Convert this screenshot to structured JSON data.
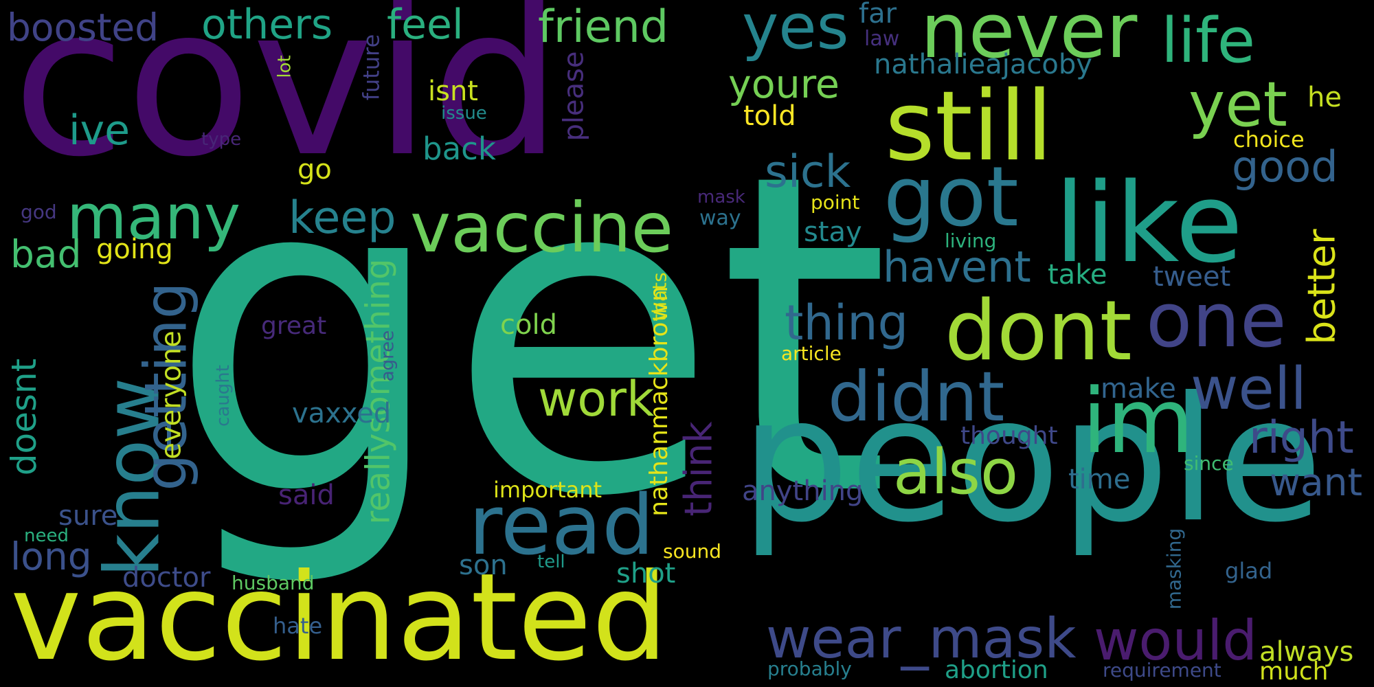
{
  "words": [
    {
      "text": "covid",
      "color": "#440a68"
    },
    {
      "text": "get",
      "color": "#22a884"
    },
    {
      "text": "people",
      "color": "#21918c"
    },
    {
      "text": "vaccinated",
      "color": "#d2e21b"
    },
    {
      "text": "still",
      "color": "#b5de2b"
    },
    {
      "text": "like",
      "color": "#1f9e89"
    },
    {
      "text": "never",
      "color": "#6ccd5a"
    },
    {
      "text": "got",
      "color": "#2a788e"
    },
    {
      "text": "dont",
      "color": "#a2da37"
    },
    {
      "text": "vaccine",
      "color": "#6ccd5a"
    },
    {
      "text": "im",
      "color": "#2fb47c"
    },
    {
      "text": "know",
      "color": "#277f8e"
    },
    {
      "text": "read",
      "color": "#2c728e"
    },
    {
      "text": "one",
      "color": "#414487"
    },
    {
      "text": "didnt",
      "color": "#31688e"
    },
    {
      "text": "many",
      "color": "#35b779"
    },
    {
      "text": "yes",
      "color": "#25848e"
    },
    {
      "text": "also",
      "color": "#8ed645"
    },
    {
      "text": "life",
      "color": "#2fb47c"
    },
    {
      "text": "yet",
      "color": "#7ad151"
    },
    {
      "text": "getting",
      "color": "#33638d"
    },
    {
      "text": "well",
      "color": "#3b528b"
    },
    {
      "text": "wear_mask",
      "color": "#3e4a89"
    },
    {
      "text": "would",
      "color": "#4a1c6e"
    },
    {
      "text": "work",
      "color": "#a0da39"
    },
    {
      "text": "thing",
      "color": "#31688e"
    },
    {
      "text": "right",
      "color": "#3e4a89"
    },
    {
      "text": "keep",
      "color": "#26828e"
    },
    {
      "text": "friend",
      "color": "#5ec962"
    },
    {
      "text": "others",
      "color": "#20a486"
    },
    {
      "text": "feel",
      "color": "#2ab07f"
    },
    {
      "text": "sick",
      "color": "#2c728e"
    },
    {
      "text": "havent",
      "color": "#2d708e"
    },
    {
      "text": "good",
      "color": "#33638d"
    },
    {
      "text": "better",
      "color": "#dae319"
    },
    {
      "text": "youre",
      "color": "#75d054"
    },
    {
      "text": "boosted",
      "color": "#404387"
    },
    {
      "text": "ive",
      "color": "#1e9b8a"
    },
    {
      "text": "think",
      "color": "#482575"
    },
    {
      "text": "want",
      "color": "#38598c"
    },
    {
      "text": "long",
      "color": "#3b518b"
    },
    {
      "text": "bad",
      "color": "#44bf70"
    },
    {
      "text": "reallysomething",
      "color": "#52c569"
    },
    {
      "text": "doesnt",
      "color": "#1fa088"
    },
    {
      "text": "everyone",
      "color": "#c2df23"
    },
    {
      "text": "vaxxed",
      "color": "#2c728e"
    },
    {
      "text": "nathalieajacoby",
      "color": "#2a788e"
    },
    {
      "text": "nathanmackbrown",
      "color": "#e5e419"
    },
    {
      "text": "back",
      "color": "#1f958b"
    },
    {
      "text": "shot",
      "color": "#1fa088"
    },
    {
      "text": "doctor",
      "color": "#3e4c8a"
    },
    {
      "text": "son",
      "color": "#2d718e"
    },
    {
      "text": "said",
      "color": "#482374"
    },
    {
      "text": "anything",
      "color": "#414487"
    },
    {
      "text": "sure",
      "color": "#3b528b"
    },
    {
      "text": "cold",
      "color": "#7fd34e"
    },
    {
      "text": "isnt",
      "color": "#c8e020"
    },
    {
      "text": "told",
      "color": "#fde725"
    },
    {
      "text": "he",
      "color": "#c5e021"
    },
    {
      "text": "choice",
      "color": "#f1e51d"
    },
    {
      "text": "stay",
      "color": "#23898e"
    },
    {
      "text": "take",
      "color": "#26ad81"
    },
    {
      "text": "tweet",
      "color": "#365d8d"
    },
    {
      "text": "make",
      "color": "#32658e"
    },
    {
      "text": "time",
      "color": "#2e6e8e"
    },
    {
      "text": "thought",
      "color": "#3f4889"
    },
    {
      "text": "always",
      "color": "#c0df25"
    },
    {
      "text": "going",
      "color": "#e2e418"
    },
    {
      "text": "go",
      "color": "#d5e21a"
    },
    {
      "text": "please",
      "color": "#472e7c"
    },
    {
      "text": "far",
      "color": "#2d708e"
    },
    {
      "text": "law",
      "color": "#46307e"
    },
    {
      "text": "future",
      "color": "#424086"
    },
    {
      "text": "lot",
      "color": "#a5db36"
    },
    {
      "text": "issue",
      "color": "#228c8d"
    },
    {
      "text": "type",
      "color": "#482677"
    },
    {
      "text": "mask",
      "color": "#482979"
    },
    {
      "text": "way",
      "color": "#2c728e"
    },
    {
      "text": "point",
      "color": "#e7e419"
    },
    {
      "text": "living",
      "color": "#2db27d"
    },
    {
      "text": "great",
      "color": "#472a7a"
    },
    {
      "text": "article",
      "color": "#f8e621"
    },
    {
      "text": "thats",
      "color": "#d8e219"
    },
    {
      "text": "agree",
      "color": "#38598c"
    },
    {
      "text": "caught",
      "color": "#2a788e"
    },
    {
      "text": "god",
      "color": "#453781"
    },
    {
      "text": "important",
      "color": "#dde318"
    },
    {
      "text": "sound",
      "color": "#f8e621"
    },
    {
      "text": "husband",
      "color": "#5ec962"
    },
    {
      "text": "hate",
      "color": "#355f8d"
    },
    {
      "text": "need",
      "color": "#2ab07f"
    },
    {
      "text": "tell",
      "color": "#1f9a8a"
    },
    {
      "text": "since",
      "color": "#40bd72"
    },
    {
      "text": "masking",
      "color": "#31688e"
    },
    {
      "text": "glad",
      "color": "#33638d"
    },
    {
      "text": "probably",
      "color": "#277f8e"
    },
    {
      "text": "abortion",
      "color": "#1fa088"
    },
    {
      "text": "requirement",
      "color": "#3e4a89"
    },
    {
      "text": "much",
      "color": "#d0e11c"
    }
  ]
}
